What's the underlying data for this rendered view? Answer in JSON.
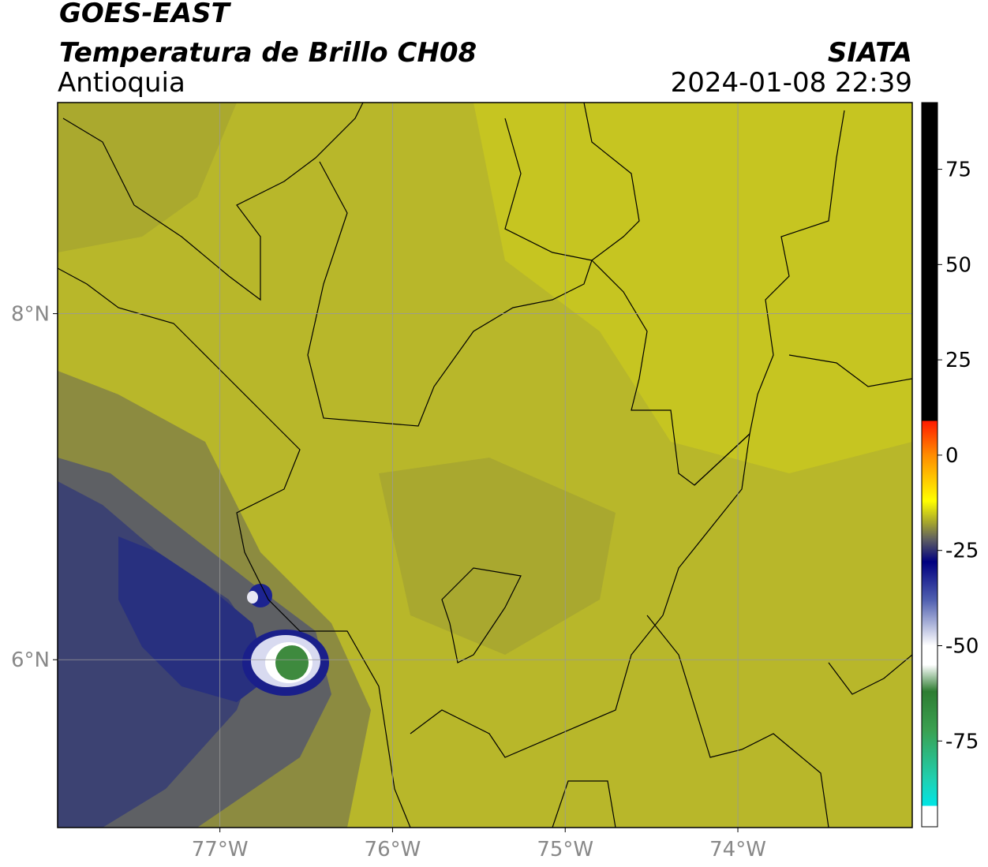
{
  "header": {
    "title": "GOES-EAST",
    "subtitle": "Temperatura de Brillo CH08",
    "region": "Antioquia",
    "source": "SIATA",
    "datetime": "2024-01-08 22:39"
  },
  "map": {
    "xlim": [
      -77.94,
      -72.99
    ],
    "ylim": [
      5.03,
      9.22
    ],
    "xticks": [
      {
        "value": -77,
        "label": "77°W"
      },
      {
        "value": -76,
        "label": "76°W"
      },
      {
        "value": -75,
        "label": "75°W"
      },
      {
        "value": -74,
        "label": "74°W"
      }
    ],
    "yticks": [
      {
        "value": 6,
        "label": "6°N"
      },
      {
        "value": 8,
        "label": "8°N"
      }
    ],
    "grid": true
  },
  "colorbar": {
    "lim": [
      -97.5,
      92.5
    ],
    "ticks": [
      75,
      50,
      25,
      0,
      -25,
      -50,
      -75
    ],
    "stops": [
      {
        "value": 92.5,
        "color": "#000000"
      },
      {
        "value": 9,
        "color": "#000000"
      },
      {
        "value": 9,
        "color": "#ff1a00"
      },
      {
        "value": 0,
        "color": "#ff8c00"
      },
      {
        "value": -12,
        "color": "#ffff00"
      },
      {
        "value": -18,
        "color": "#a0a030"
      },
      {
        "value": -22,
        "color": "#606060"
      },
      {
        "value": -28,
        "color": "#000080"
      },
      {
        "value": -38,
        "color": "#5060b0"
      },
      {
        "value": -50,
        "color": "#ffffff"
      },
      {
        "value": -55,
        "color": "#ffffff"
      },
      {
        "value": -62,
        "color": "#2e7d32"
      },
      {
        "value": -72,
        "color": "#3aa050"
      },
      {
        "value": -85,
        "color": "#20d0b0"
      },
      {
        "value": -92,
        "color": "#00e5e5"
      },
      {
        "value": -92,
        "color": "#ffffff"
      },
      {
        "value": -97.5,
        "color": "#ffffff"
      }
    ]
  }
}
